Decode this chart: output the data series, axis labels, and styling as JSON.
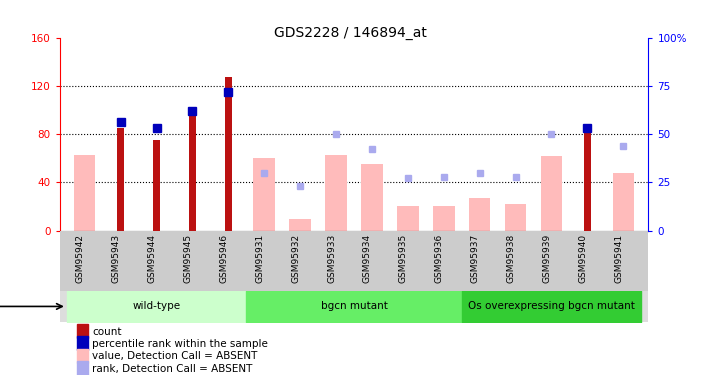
{
  "title": "GDS2228 / 146894_at",
  "samples": [
    "GSM95942",
    "GSM95943",
    "GSM95944",
    "GSM95945",
    "GSM95946",
    "GSM95931",
    "GSM95932",
    "GSM95933",
    "GSM95934",
    "GSM95935",
    "GSM95936",
    "GSM95937",
    "GSM95938",
    "GSM95939",
    "GSM95940",
    "GSM95941"
  ],
  "count_values": [
    null,
    85,
    75,
    96,
    127,
    null,
    null,
    null,
    null,
    null,
    null,
    null,
    null,
    null,
    87,
    null
  ],
  "percentile_values": [
    null,
    56,
    53,
    62,
    72,
    null,
    null,
    null,
    null,
    null,
    null,
    null,
    null,
    null,
    53,
    null
  ],
  "absent_value": [
    63,
    null,
    null,
    null,
    null,
    60,
    10,
    63,
    55,
    20,
    20,
    27,
    22,
    62,
    null,
    48
  ],
  "absent_rank": [
    null,
    null,
    null,
    null,
    null,
    30,
    23,
    50,
    42,
    27,
    28,
    30,
    28,
    50,
    null,
    44
  ],
  "groups": [
    {
      "label": "wild-type",
      "start": 0,
      "end": 5,
      "color": "#ccffcc"
    },
    {
      "label": "bgcn mutant",
      "start": 5,
      "end": 11,
      "color": "#66ee66"
    },
    {
      "label": "Os overexpressing bgcn mutant",
      "start": 11,
      "end": 16,
      "color": "#33cc33"
    }
  ],
  "ylim_left": [
    0,
    160
  ],
  "ylim_right": [
    0,
    100
  ],
  "yticks_left": [
    0,
    40,
    80,
    120,
    160
  ],
  "yticks_right": [
    0,
    25,
    50,
    75,
    100
  ],
  "ytick_labels_right": [
    "0",
    "25",
    "50",
    "75",
    "100%"
  ],
  "bar_color_count": "#bb1111",
  "bar_color_absent_value": "#ffbbbb",
  "dot_color_percentile": "#0000bb",
  "dot_color_absent_rank": "#aaaaee",
  "bg_color_label_row": "#cccccc",
  "legend_items": [
    {
      "color": "#bb1111",
      "label": "count"
    },
    {
      "color": "#0000bb",
      "label": "percentile rank within the sample"
    },
    {
      "color": "#ffbbbb",
      "label": "value, Detection Call = ABSENT"
    },
    {
      "color": "#aaaaee",
      "label": "rank, Detection Call = ABSENT"
    }
  ]
}
